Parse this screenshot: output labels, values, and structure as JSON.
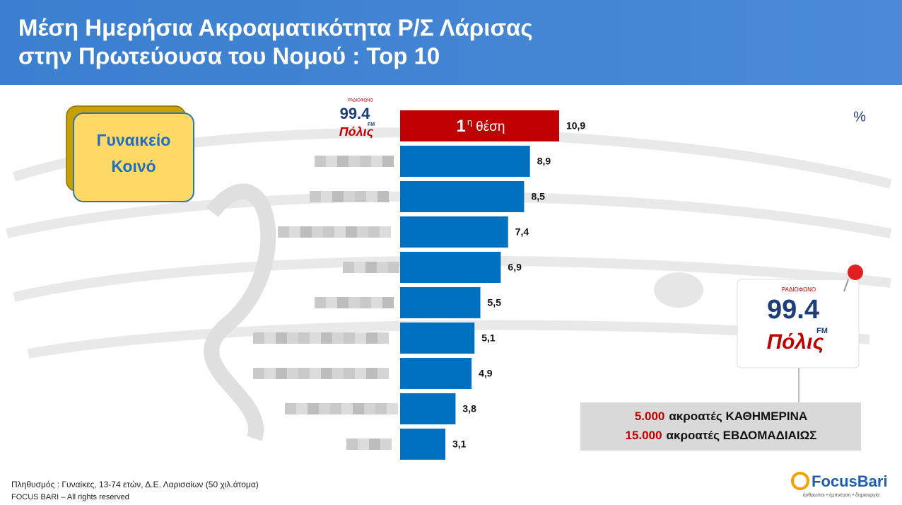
{
  "chart_data": {
    "type": "bar",
    "orientation": "horizontal",
    "title": "Μέση Ημερήσια Ακροαματικότητα Ρ/Σ Λάρισας",
    "subtitle": "στην Πρωτεύουσα του Νομού : Top 10",
    "unit": "%",
    "categories": [
      null,
      null,
      null,
      null,
      null,
      null,
      null,
      null,
      null,
      null
    ],
    "values": [
      10.9,
      8.9,
      8.5,
      7.4,
      6.9,
      5.5,
      5.1,
      4.9,
      3.8,
      3.1
    ],
    "value_labels": [
      "10,9",
      "8,9",
      "8,5",
      "7,4",
      "6,9",
      "5,5",
      "5,1",
      "4,9",
      "3,8",
      "3,1"
    ],
    "colors": [
      "#c00000",
      "#0070c0",
      "#0070c0",
      "#0070c0",
      "#0070c0",
      "#0070c0",
      "#0070c0",
      "#0070c0",
      "#0070c0",
      "#0070c0"
    ],
    "annotation": {
      "rank": "1",
      "rank_suffix": "η",
      "text": "θέση"
    },
    "segment": "Γυναικείο Κοινό"
  },
  "station": {
    "top": "ΡΑΔΙΟΦΩΝΟ",
    "frequency": "99.4",
    "band": "FM",
    "name": "Πόλις"
  },
  "panel": [
    {
      "number": "5.000",
      "text": "ακροατές ΚΑΘΗΜΕΡΙΝΑ"
    },
    {
      "number": "15.000",
      "text": "ακροατές ΕΒΔΟΜΑΔΙΑΙΩΣ"
    }
  ],
  "footer": {
    "note": "Πληθυσμός : Γυναίκες, 13-74 ετών, Δ.Ε. Λαρισαίων (50 χιλ.άτομα)",
    "rights": "FOCUS BARI – All rights reserved",
    "brand": "FocusBari",
    "tagline": "άνθρωποι • έμπνευση • δημιουργία"
  }
}
